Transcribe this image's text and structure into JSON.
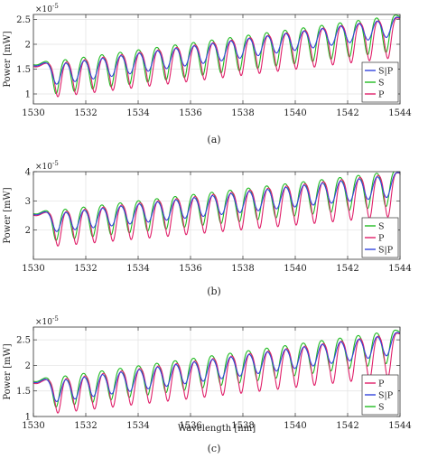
{
  "figure": {
    "panel_tags": [
      "(a)",
      "(b)",
      "(c)"
    ],
    "colors": {
      "S|P": "#3344dd",
      "S": "#22bb22",
      "P": "#e0206a"
    }
  },
  "chart_data": [
    {
      "type": "line",
      "panel": "(a)",
      "xlabel": "",
      "ylabel": "Power [mW]",
      "y_exponent": "×10",
      "y_exponent_power": "-5",
      "xlim": [
        1530,
        1544
      ],
      "ylim": [
        0.8,
        2.6
      ],
      "xticks": [
        1530,
        1532,
        1534,
        1536,
        1538,
        1540,
        1542,
        1544
      ],
      "yticks": [
        1,
        1.5,
        2,
        2.5
      ],
      "ytick_labels": [
        "1",
        "1.5",
        "2",
        "2.5"
      ],
      "legend": [
        "S|P",
        "S",
        "P"
      ],
      "legend_position": "bottom-right",
      "dips_x": [
        1530.9,
        1531.6,
        1532.3,
        1533.0,
        1533.7,
        1534.4,
        1535.1,
        1535.8,
        1536.5,
        1537.2,
        1537.9,
        1538.6,
        1539.3,
        1540.0,
        1540.7,
        1541.4,
        1542.1,
        1542.8,
        1543.5
      ],
      "series": [
        {
          "name": "S|P",
          "peak_start": 1.58,
          "peak_end": 2.56,
          "dip_start": 1.15,
          "dip_end": 2.2,
          "offset": 0.0,
          "width": 0.22
        },
        {
          "name": "S",
          "peak_start": 1.6,
          "peak_end": 2.58,
          "dip_start": 0.97,
          "dip_end": 1.9,
          "offset": -0.03,
          "width": 0.17
        },
        {
          "name": "P",
          "peak_start": 1.56,
          "peak_end": 2.54,
          "dip_start": 0.9,
          "dip_end": 1.75,
          "offset": 0.04,
          "width": 0.17
        }
      ]
    },
    {
      "type": "line",
      "panel": "(b)",
      "xlabel": "",
      "ylabel": "Power [mW]",
      "y_exponent": "×10",
      "y_exponent_power": "-5",
      "xlim": [
        1530,
        1544
      ],
      "ylim": [
        1.0,
        4.0
      ],
      "xticks": [
        1530,
        1532,
        1534,
        1536,
        1538,
        1540,
        1542,
        1544
      ],
      "yticks": [
        2,
        3,
        4
      ],
      "ytick_labels": [
        "2",
        "3",
        "4"
      ],
      "legend": [
        "S",
        "P",
        "S|P"
      ],
      "legend_position": "bottom-right",
      "dips_x": [
        1530.9,
        1531.6,
        1532.3,
        1533.0,
        1533.7,
        1534.4,
        1535.1,
        1535.8,
        1536.5,
        1537.2,
        1537.9,
        1538.6,
        1539.3,
        1540.0,
        1540.7,
        1541.4,
        1542.1,
        1542.8,
        1543.5
      ],
      "series": [
        {
          "name": "S|P",
          "peak_start": 2.55,
          "peak_end": 4.0,
          "dip_start": 1.9,
          "dip_end": 3.2,
          "offset": 0.0,
          "width": 0.22
        },
        {
          "name": "S",
          "peak_start": 2.58,
          "peak_end": 4.02,
          "dip_start": 1.6,
          "dip_end": 2.9,
          "offset": -0.03,
          "width": 0.17
        },
        {
          "name": "P",
          "peak_start": 2.52,
          "peak_end": 3.98,
          "dip_start": 1.4,
          "dip_end": 2.5,
          "offset": 0.04,
          "width": 0.17
        }
      ]
    },
    {
      "type": "line",
      "panel": "(c)",
      "xlabel": "Wavelength [nm]",
      "ylabel": "Power [mW]",
      "y_exponent": "×10",
      "y_exponent_power": "-5",
      "xlim": [
        1530,
        1544
      ],
      "ylim": [
        1.0,
        2.75
      ],
      "xticks": [
        1530,
        1532,
        1534,
        1536,
        1538,
        1540,
        1542,
        1544
      ],
      "yticks": [
        1,
        1.5,
        2,
        2.5
      ],
      "ytick_labels": [
        "1",
        "1.5",
        "2",
        "2.5"
      ],
      "legend": [
        "P",
        "S|P",
        "S"
      ],
      "legend_position": "bottom-right",
      "dips_x": [
        1530.9,
        1531.6,
        1532.3,
        1533.0,
        1533.7,
        1534.4,
        1535.1,
        1535.8,
        1536.5,
        1537.2,
        1537.9,
        1538.6,
        1539.3,
        1540.0,
        1540.7,
        1541.4,
        1542.1,
        1542.8,
        1543.5
      ],
      "series": [
        {
          "name": "S|P",
          "peak_start": 1.68,
          "peak_end": 2.66,
          "dip_start": 1.25,
          "dip_end": 2.25,
          "offset": 0.0,
          "width": 0.22
        },
        {
          "name": "S",
          "peak_start": 1.7,
          "peak_end": 2.68,
          "dip_start": 1.15,
          "dip_end": 2.1,
          "offset": -0.03,
          "width": 0.17
        },
        {
          "name": "P",
          "peak_start": 1.66,
          "peak_end": 2.64,
          "dip_start": 1.03,
          "dip_end": 1.8,
          "offset": 0.04,
          "width": 0.17
        }
      ]
    }
  ]
}
